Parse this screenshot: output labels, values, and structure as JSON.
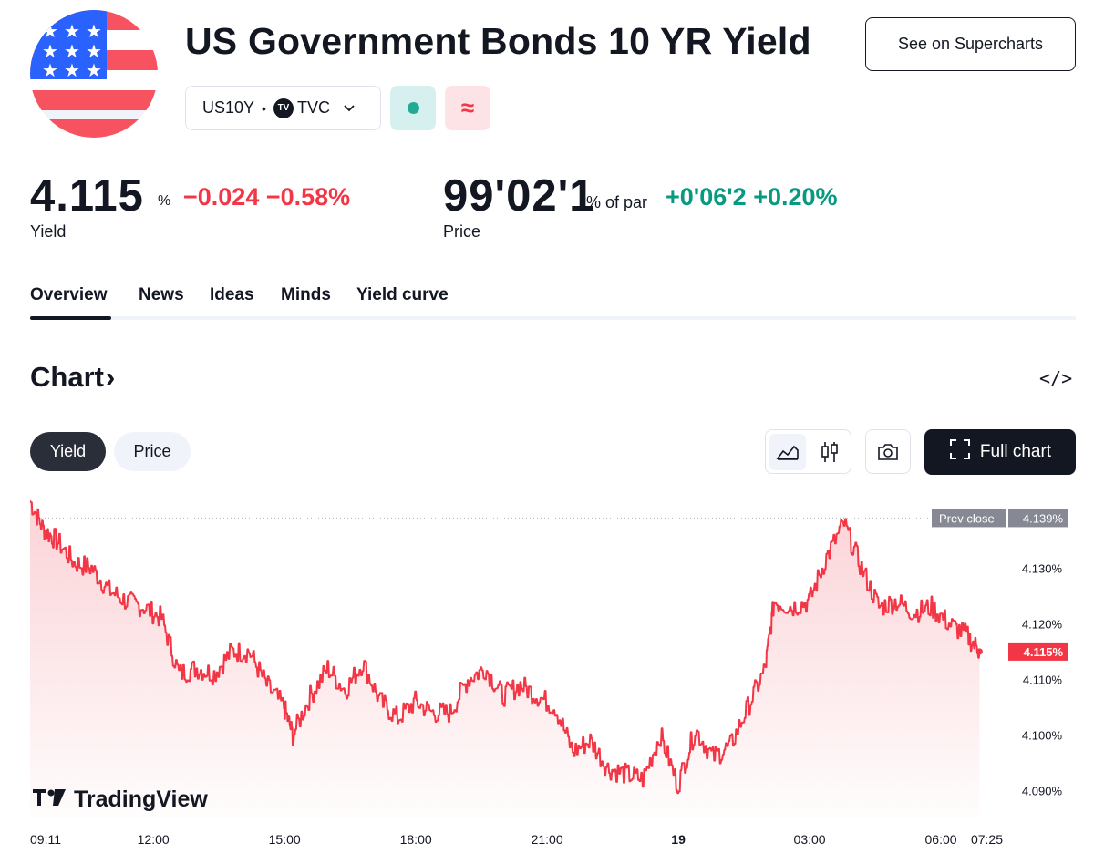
{
  "header": {
    "title": "US Government Bonds 10 YR Yield",
    "flag_icon": "us-flag-icon",
    "supercharts_label": "See on Supercharts",
    "symbol": "US10Y",
    "separator": "•",
    "exchange_logo": "TV",
    "exchange": "TVC"
  },
  "quote": {
    "yield_value": "4.115",
    "yield_unit": "%",
    "yield_change": "−0.024",
    "yield_change_pct": "−0.58%",
    "yield_label": "Yield",
    "price_value": "99'02'1",
    "price_unit": "% of par",
    "price_change": "+0'06'2",
    "price_change_pct": "+0.20%",
    "price_label": "Price"
  },
  "tabs": [
    {
      "label": "Overview"
    },
    {
      "label": "News"
    },
    {
      "label": "Ideas"
    },
    {
      "label": "Minds"
    },
    {
      "label": "Yield curve"
    }
  ],
  "chart_section": {
    "heading": "Chart",
    "heading_arrow": "›",
    "embed_label": "</>",
    "pill_yield": "Yield",
    "pill_price": "Price",
    "full_chart_label": "Full chart",
    "brand": "TradingView",
    "prev_close_label": "Prev close",
    "prev_close_value": "4.139%",
    "last_value_label": "4.115%"
  },
  "colors": {
    "line": "#f23645",
    "fill_top": "#fbd0d4",
    "negative": "#f23645",
    "positive": "#089981"
  },
  "chart_data": {
    "type": "area",
    "y_unit": "%",
    "ylim": [
      4.085,
      4.143
    ],
    "y_ticks": [
      "4.130%",
      "4.120%",
      "4.110%",
      "4.100%",
      "4.090%"
    ],
    "y_tick_values": [
      4.13,
      4.12,
      4.11,
      4.1,
      4.09
    ],
    "x_ticks": [
      "09:11",
      "12:00",
      "15:00",
      "18:00",
      "21:00",
      "19",
      "03:00",
      "06:00",
      "07:25"
    ],
    "x_tick_hours": [
      0,
      2.817,
      5.817,
      8.817,
      11.817,
      14.817,
      17.817,
      20.817,
      22.233
    ],
    "prev_close": 4.139,
    "last": 4.115,
    "series": [
      {
        "x_hours": [
          0.0,
          0.3,
          0.6,
          1.0,
          1.4,
          1.8,
          2.2,
          2.6,
          3.0,
          3.4,
          3.8,
          4.2,
          4.6,
          5.0,
          5.4,
          5.8,
          6.0,
          6.4,
          6.8,
          7.2,
          7.6,
          8.0,
          8.4,
          8.8,
          9.2,
          9.6,
          10.0,
          10.4,
          10.8,
          11.2,
          11.6,
          12.0,
          12.4,
          12.8,
          13.2,
          13.6,
          14.0,
          14.4,
          14.8,
          15.2,
          15.6,
          16.0,
          16.4,
          16.8,
          17.0,
          17.4,
          17.8,
          18.2,
          18.6,
          19.0,
          19.4,
          19.8,
          20.2,
          20.6,
          21.0,
          21.4,
          21.7
        ],
        "y": [
          4.142,
          4.137,
          4.135,
          4.131,
          4.13,
          4.126,
          4.124,
          4.123,
          4.121,
          4.111,
          4.112,
          4.111,
          4.115,
          4.115,
          4.109,
          4.105,
          4.1,
          4.107,
          4.112,
          4.108,
          4.113,
          4.106,
          4.103,
          4.106,
          4.104,
          4.104,
          4.11,
          4.112,
          4.107,
          4.109,
          4.107,
          4.105,
          4.097,
          4.099,
          4.094,
          4.093,
          4.092,
          4.1,
          4.091,
          4.101,
          4.096,
          4.098,
          4.105,
          4.112,
          4.124,
          4.123,
          4.124,
          4.132,
          4.138,
          4.13,
          4.123,
          4.124,
          4.122,
          4.123,
          4.12,
          4.118,
          4.115
        ]
      }
    ]
  }
}
